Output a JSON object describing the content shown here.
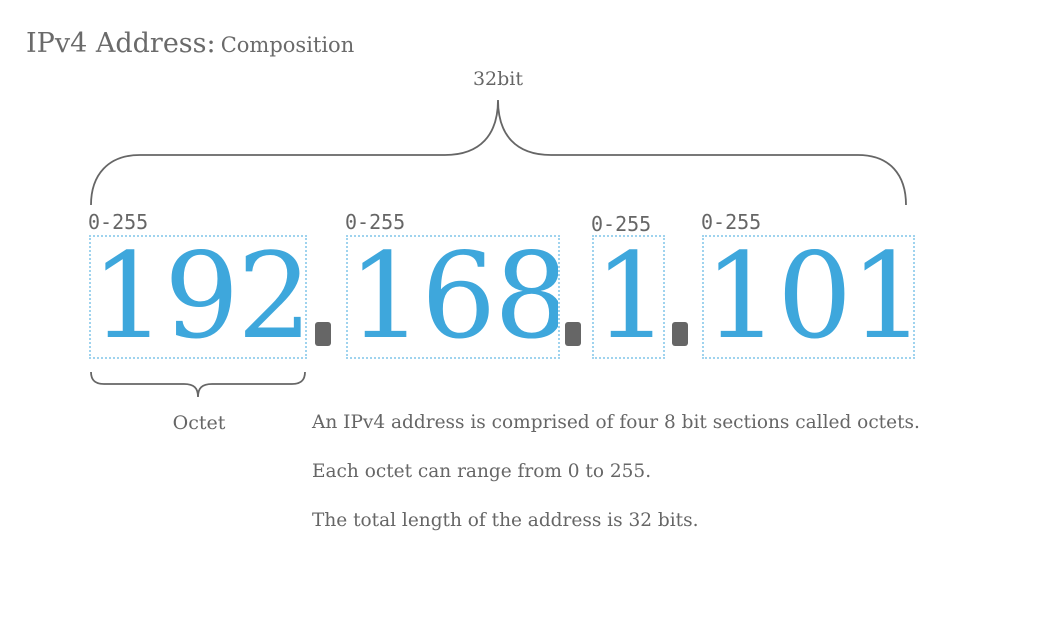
{
  "title": {
    "main": "IPv4 Address:",
    "sub": "Composition"
  },
  "total_bits_label": "32bit",
  "octets": [
    {
      "value": "192",
      "range": "0-255"
    },
    {
      "value": "168",
      "range": "0-255"
    },
    {
      "value": "1",
      "range": "0-255"
    },
    {
      "value": "101",
      "range": "0-255"
    }
  ],
  "octet_label": "Octet",
  "description": [
    "An IPv4 address is comprised of four 8 bit sections called octets.",
    "Each octet can range from 0 to 255.",
    "The total length of the address is 32 bits."
  ],
  "colors": {
    "octet_digits": "#3ea7dc",
    "octet_box_border": "#9fd3ee",
    "text": "#666666",
    "brace": "#666666"
  }
}
